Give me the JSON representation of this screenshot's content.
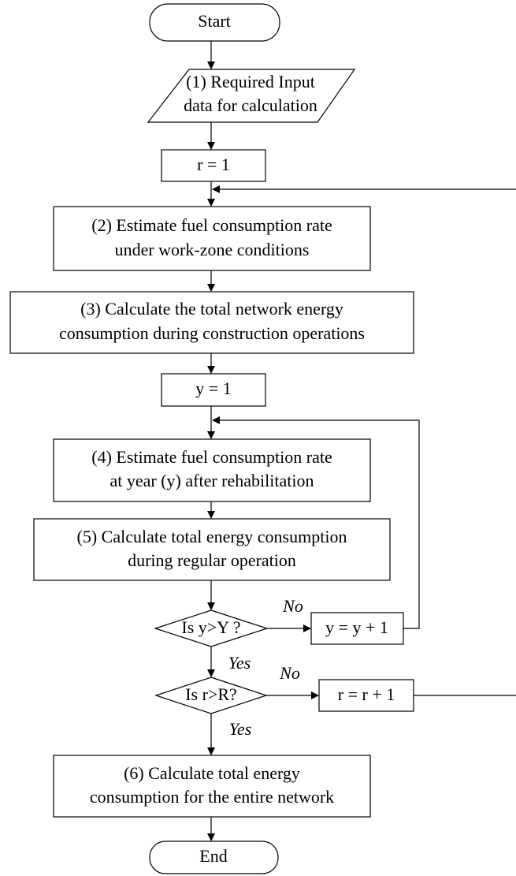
{
  "nodes": [
    {
      "label": [
        "Start"
      ]
    },
    {
      "label": [
        "(1) Required Input",
        "data for calculation"
      ]
    },
    {
      "label": [
        "r = 1"
      ]
    },
    {
      "label": [
        "(2) Estimate fuel consumption rate",
        "under work-zone conditions"
      ]
    },
    {
      "label": [
        "(3) Calculate the total network energy",
        "consumption during construction operations"
      ]
    },
    {
      "label": [
        "y = 1"
      ]
    },
    {
      "label": [
        "(4) Estimate fuel consumption rate",
        "at year (y) after rehabilitation"
      ]
    },
    {
      "label": [
        "(5) Calculate total energy consumption",
        "during regular operation"
      ]
    },
    {
      "label": [
        "Is y>Y ?"
      ]
    },
    {
      "label": [
        "y = y + 1"
      ]
    },
    {
      "label": [
        "Is r>R?"
      ]
    },
    {
      "label": [
        "r = r + 1"
      ]
    },
    {
      "label": [
        "(6) Calculate total energy",
        "consumption for the entire network"
      ]
    },
    {
      "label": [
        "End"
      ]
    }
  ],
  "edges": [
    {
      "label": "No"
    },
    {
      "label": "Yes"
    },
    {
      "label": "No"
    },
    {
      "label": "Yes"
    }
  ]
}
